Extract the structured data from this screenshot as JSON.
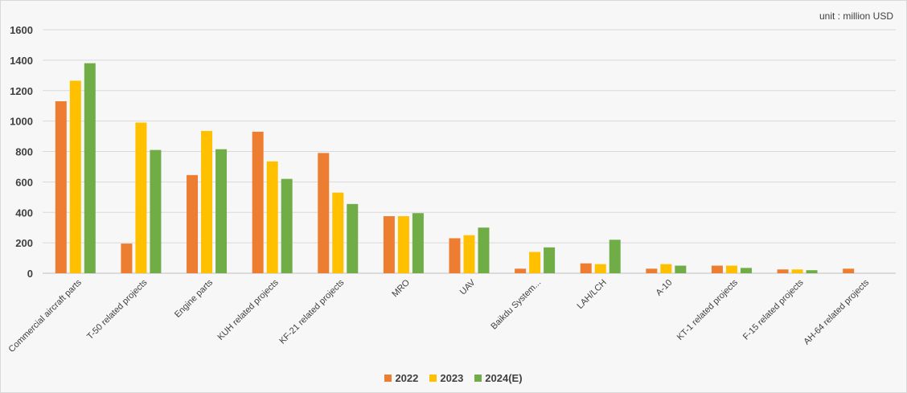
{
  "chart_data": {
    "type": "bar",
    "unit_label": "unit : million USD",
    "categories": [
      "Commercial aircraft parts",
      "T-50 related projects",
      "Engine parts",
      "KUH related projects",
      "KF-21 related projects",
      "MRO",
      "UAV",
      "Baikdu System...",
      "LAH/LCH",
      "A-10",
      "KT-1 related projects",
      "F-15 related projects",
      "AH-64 related projects"
    ],
    "series": [
      {
        "name": "2022",
        "color": "#ed7d31",
        "values": [
          1130,
          195,
          645,
          930,
          790,
          375,
          230,
          30,
          65,
          30,
          50,
          25,
          30
        ]
      },
      {
        "name": "2023",
        "color": "#ffc000",
        "values": [
          1265,
          990,
          935,
          735,
          530,
          375,
          250,
          140,
          60,
          60,
          50,
          25,
          null
        ]
      },
      {
        "name": "2024(E)",
        "color": "#70ad47",
        "values": [
          1380,
          810,
          815,
          620,
          455,
          395,
          300,
          170,
          220,
          50,
          35,
          20,
          null
        ]
      }
    ],
    "ylim": [
      0,
      1600
    ],
    "yticks": [
      0,
      200,
      400,
      600,
      800,
      1000,
      1200,
      1400,
      1600
    ],
    "grid": true,
    "legend_position": "bottom-center"
  }
}
